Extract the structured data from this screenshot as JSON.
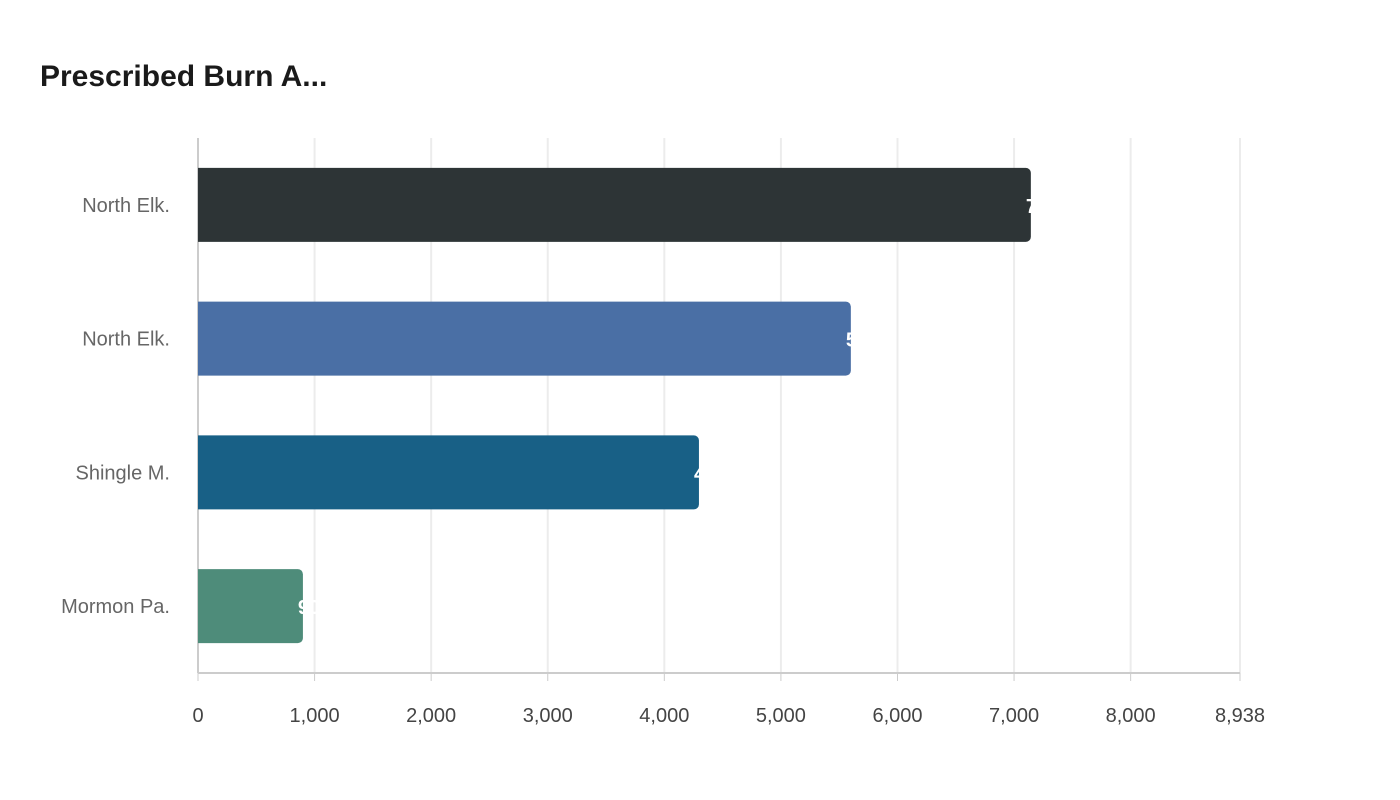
{
  "chart_data": {
    "type": "bar",
    "orientation": "horizontal",
    "title": "Prescribed Burn A...",
    "categories": [
      "North Elk.",
      "North Elk.",
      "Shingle M.",
      "Mormon Pa."
    ],
    "values": [
      7144,
      5600,
      4297,
      900
    ],
    "colors": [
      "#2d3436",
      "#4a6fa5",
      "#186086",
      "#4e8c7a"
    ],
    "xlim": [
      0,
      8938
    ],
    "xticks": [
      0,
      1000,
      2000,
      3000,
      4000,
      5000,
      6000,
      7000,
      8000,
      8938
    ],
    "xtick_labels": [
      "0",
      "1,000",
      "2,000",
      "3,000",
      "4,000",
      "5,000",
      "6,000",
      "7,000",
      "8,000",
      "8,938"
    ],
    "grid": true,
    "data_labels": true
  }
}
